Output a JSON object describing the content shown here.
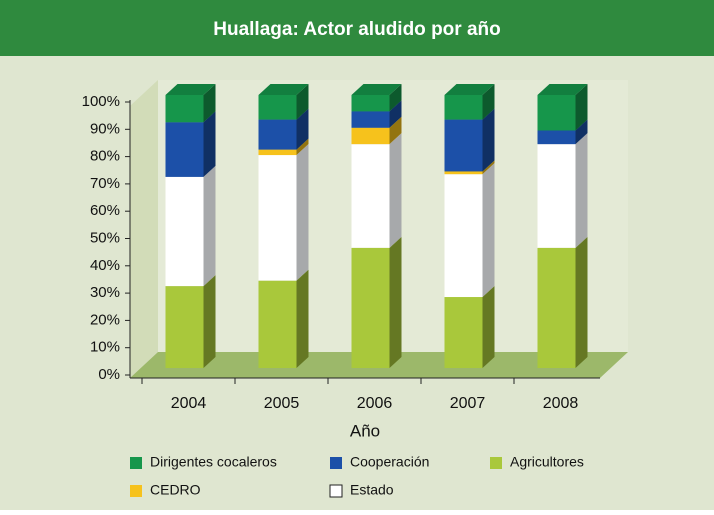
{
  "chart_data": {
    "type": "bar3d_stacked",
    "title": "Huallaga: Actor aludido por año",
    "x_label": "Año",
    "categories": [
      "2004",
      "2005",
      "2006",
      "2007",
      "2008"
    ],
    "series": [
      {
        "name": "Agricultores",
        "color": "#a9c83b",
        "values": [
          30,
          32,
          44,
          26,
          44
        ]
      },
      {
        "name": "Estado",
        "color": "#ffffff",
        "values": [
          40,
          46,
          38,
          45,
          38
        ]
      },
      {
        "name": "CEDRO",
        "color": "#f6c21c",
        "values": [
          0,
          2,
          6,
          1,
          0
        ]
      },
      {
        "name": "Cooperación",
        "color": "#1c50a8",
        "values": [
          20,
          11,
          6,
          19,
          5
        ]
      },
      {
        "name": "Dirigentes cocaleros",
        "color": "#16964b",
        "values": [
          10,
          9,
          6,
          9,
          13
        ]
      }
    ],
    "ylim": [
      0,
      100
    ],
    "yticks": [
      {
        "value": 0,
        "label": "0%"
      },
      {
        "value": 10,
        "label": "10%"
      },
      {
        "value": 20,
        "label": "20%"
      },
      {
        "value": 30,
        "label": "30%"
      },
      {
        "value": 40,
        "label": "40%"
      },
      {
        "value": 50,
        "label": "50%"
      },
      {
        "value": 60,
        "label": "60%"
      },
      {
        "value": 70,
        "label": "70%"
      },
      {
        "value": 80,
        "label": "80%"
      },
      {
        "value": 90,
        "label": "90%"
      },
      {
        "value": 100,
        "label": "100%"
      }
    ]
  }
}
